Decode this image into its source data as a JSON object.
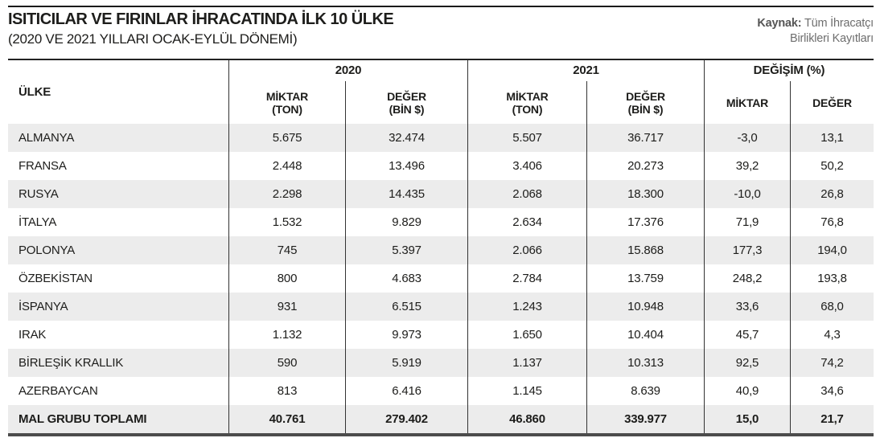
{
  "header": {
    "title": "ISITICILAR VE FIRINLAR İHRACATINDA İLK 10 ÜLKE",
    "subtitle": "(2020 VE 2021 YILLARI OCAK-EYLÜL DÖNEMİ)",
    "source_label": "Kaynak:",
    "source_line1": " Tüm İhracatçı",
    "source_line2": "Birlikleri Kayıtları"
  },
  "table": {
    "country_header": "ÜLKE",
    "groups": [
      {
        "label": "2020"
      },
      {
        "label": "2021"
      },
      {
        "label": "DEĞİŞİM (%)"
      }
    ],
    "subheaders": [
      "MİKTAR\n(TON)",
      "DEĞER\n(BİN $)",
      "MİKTAR\n(TON)",
      "DEĞER\n(BİN $)",
      "MİKTAR",
      "DEĞER"
    ],
    "rows": [
      {
        "country": "ALMANYA",
        "values": [
          "5.675",
          "32.474",
          "5.507",
          "36.717",
          "-3,0",
          "13,1"
        ]
      },
      {
        "country": "FRANSA",
        "values": [
          "2.448",
          "13.496",
          "3.406",
          "20.273",
          "39,2",
          "50,2"
        ]
      },
      {
        "country": "RUSYA",
        "values": [
          "2.298",
          "14.435",
          "2.068",
          "18.300",
          "-10,0",
          "26,8"
        ]
      },
      {
        "country": "İTALYA",
        "values": [
          "1.532",
          "9.829",
          "2.634",
          "17.376",
          "71,9",
          "76,8"
        ]
      },
      {
        "country": "POLONYA",
        "values": [
          "745",
          "5.397",
          "2.066",
          "15.868",
          "177,3",
          "194,0"
        ]
      },
      {
        "country": "ÖZBEKİSTAN",
        "values": [
          "800",
          "4.683",
          "2.784",
          "13.759",
          "248,2",
          "193,8"
        ]
      },
      {
        "country": "İSPANYA",
        "values": [
          "931",
          "6.515",
          "1.243",
          "10.948",
          "33,6",
          "68,0"
        ]
      },
      {
        "country": "IRAK",
        "values": [
          "1.132",
          "9.973",
          "1.650",
          "10.404",
          "45,7",
          "4,3"
        ]
      },
      {
        "country": "BİRLEŞİK KRALLIK",
        "values": [
          "590",
          "5.919",
          "1.137",
          "10.313",
          "92,5",
          "74,2"
        ]
      },
      {
        "country": "AZERBAYCAN",
        "values": [
          "813",
          "6.416",
          "1.145",
          "8.639",
          "40,9",
          "34,6"
        ]
      },
      {
        "country": "MAL GRUBU TOPLAMI",
        "values": [
          "40.761",
          "279.402",
          "46.860",
          "339.977",
          "15,0",
          "21,7"
        ],
        "is_total": true
      }
    ]
  },
  "chart_data": {
    "type": "table",
    "title": "ISITICILAR VE FIRINLAR İHRACATINDA İLK 10 ÜLKE",
    "subtitle": "(2020 VE 2021 YILLARI OCAK-EYLÜL DÖNEMİ)",
    "source": "Kaynak: Tüm İhracatçı Birlikleri Kayıtları",
    "columns": [
      "ÜLKE",
      "2020 MİKTAR (TON)",
      "2020 DEĞER (BİN $)",
      "2021 MİKTAR (TON)",
      "2021 DEĞER (BİN $)",
      "DEĞİŞİM MİKTAR (%)",
      "DEĞİŞİM DEĞER (%)"
    ],
    "rows": [
      [
        "ALMANYA",
        5675,
        32474,
        5507,
        36717,
        -3.0,
        13.1
      ],
      [
        "FRANSA",
        2448,
        13496,
        3406,
        20273,
        39.2,
        50.2
      ],
      [
        "RUSYA",
        2298,
        14435,
        2068,
        18300,
        -10.0,
        26.8
      ],
      [
        "İTALYA",
        1532,
        9829,
        2634,
        17376,
        71.9,
        76.8
      ],
      [
        "POLONYA",
        745,
        5397,
        2066,
        15868,
        177.3,
        194.0
      ],
      [
        "ÖZBEKİSTAN",
        800,
        4683,
        2784,
        13759,
        248.2,
        193.8
      ],
      [
        "İSPANYA",
        931,
        6515,
        1243,
        10948,
        33.6,
        68.0
      ],
      [
        "IRAK",
        1132,
        9973,
        1650,
        10404,
        45.7,
        4.3
      ],
      [
        "BİRLEŞİK KRALLIK",
        590,
        5919,
        1137,
        10313,
        92.5,
        74.2
      ],
      [
        "AZERBAYCAN",
        813,
        6416,
        1145,
        8639,
        40.9,
        34.6
      ]
    ],
    "total_row": [
      "MAL GRUBU TOPLAMI",
      40761,
      279402,
      46860,
      339977,
      15.0,
      21.7
    ]
  },
  "colors": {
    "row_stripe": "#ececec",
    "line": "#333333",
    "bottom_rule": "#4c4c4c",
    "ink": "#1d1d1b",
    "source_gray": "#6e6e6e",
    "source_dark": "#555555"
  }
}
